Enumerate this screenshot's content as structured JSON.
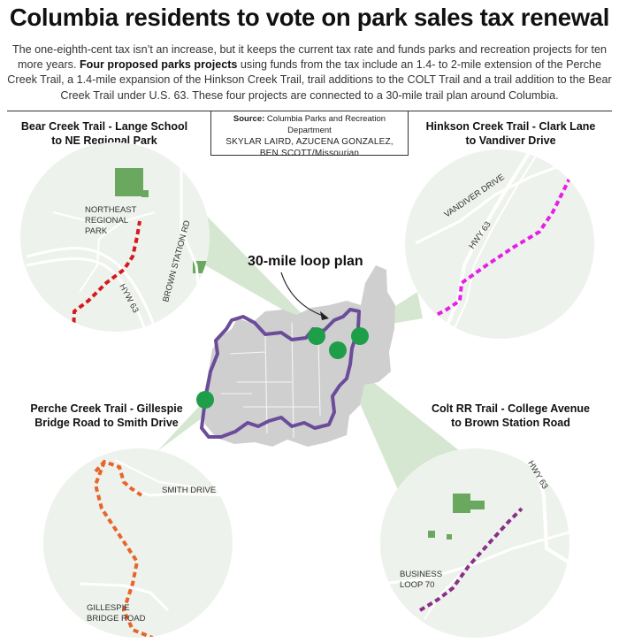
{
  "headline": "Columbia residents to vote on park sales tax renewal",
  "intro": {
    "part1": "The one-eighth-cent tax isn’t an increase, but it keeps the current tax rate and funds parks and recreation projects for ten more years. ",
    "bold": "Four proposed parks projects",
    "part2": " using funds from the tax include an 1.4- to 2-mile extension of the Perche Creek Trail, a 1.4-mile expansion of the Hinkson Creek Trail, trail additions to the COLT Trail and a trail addition to the Bear Creek Trail under U.S. 63. These four projects are connected to a 30-mile trail plan around Columbia."
  },
  "source": {
    "label": "Source:",
    "text": " Columbia Parks and Recreation Department",
    "credit_line1": "SKYLAR LAIRD, AZUCENA GONZALEZ,",
    "credit_line2_names": "BEN SCOTT",
    "credit_line2_outlet": "/Missourian"
  },
  "loop_label": "30-mile loop plan",
  "insets": {
    "bear": {
      "title_line1": "Bear Creek Trail - Lange School",
      "title_line2": "to NE Regional Park",
      "labels": {
        "park1": "NORTHEAST",
        "park2": "REGIONAL",
        "park3": "PARK",
        "road1": "BROWN STATION RD",
        "road2": "HYW 63"
      }
    },
    "hinkson": {
      "title_line1": "Hinkson Creek Trail - Clark Lane",
      "title_line2": "to Vandiver Drive",
      "labels": {
        "road1": "VANDIVER DRIVE",
        "road2": "HWY 63"
      }
    },
    "perche": {
      "title_line1": "Perche Creek Trail - Gillespie",
      "title_line2": "Bridge Road to Smith Drive",
      "labels": {
        "road1": "SMITH DRIVE",
        "road2a": "GILLESPIE",
        "road2b": "BRIDGE ROAD"
      }
    },
    "colt": {
      "title_line1": "Colt RR Trail - College Avenue",
      "title_line2": "to  Brown Station Road",
      "labels": {
        "road1": "HWY 63",
        "road2a": "BUSINESS",
        "road2b": "LOOP 70"
      }
    }
  },
  "colors": {
    "loop": "#6b4c9a",
    "marker": "#1f9e4a",
    "city": "#cfcfcf",
    "bear_trail": "#d7191c",
    "hinkson_trail": "#e61ee6",
    "perche_trail": "#e8642a",
    "colt_trail": "#8a2f8a",
    "inset_bg": "#eef2ec",
    "park": "#6aa860",
    "cone": "#cfe3c9"
  }
}
